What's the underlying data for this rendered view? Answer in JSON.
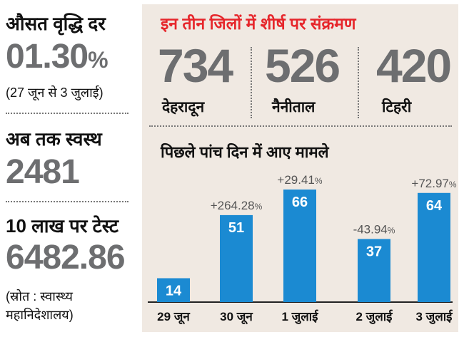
{
  "left_panel": {
    "growth_label": "औसत वृद्धि दर",
    "growth_value": "01.30",
    "growth_unit": "%",
    "growth_period": "(27 जून से 3 जुलाई)",
    "recovered_label": "अब तक स्वस्थ",
    "recovered_value": "2481",
    "tests_label": "10 लाख पर टेस्ट",
    "tests_value": "6482.86",
    "source_line1": "(स्रोत : स्वास्थ्य",
    "source_line2": "महानिदेशालय)"
  },
  "top_districts": {
    "title": "इन तीन जिलों में शीर्ष पर संक्रमण",
    "items": [
      {
        "value": "734",
        "name": "देहरादून"
      },
      {
        "value": "526",
        "name": "नैनीताल"
      },
      {
        "value": "420",
        "name": "टिहरी"
      }
    ]
  },
  "chart_data": {
    "type": "bar",
    "title": "पिछले पांच दिन में आए मामले",
    "categories": [
      "29 जून",
      "30 जून",
      "1 जुलाई",
      "2 जुलाई",
      "3 जुलाई"
    ],
    "values": [
      14,
      51,
      66,
      37,
      64
    ],
    "change_labels": [
      "",
      "+264.28",
      "+29.41",
      "-43.94",
      "+72.97"
    ],
    "change_unit": "%",
    "bar_color": "#1b8ad2",
    "label_color": "#ffffff"
  }
}
